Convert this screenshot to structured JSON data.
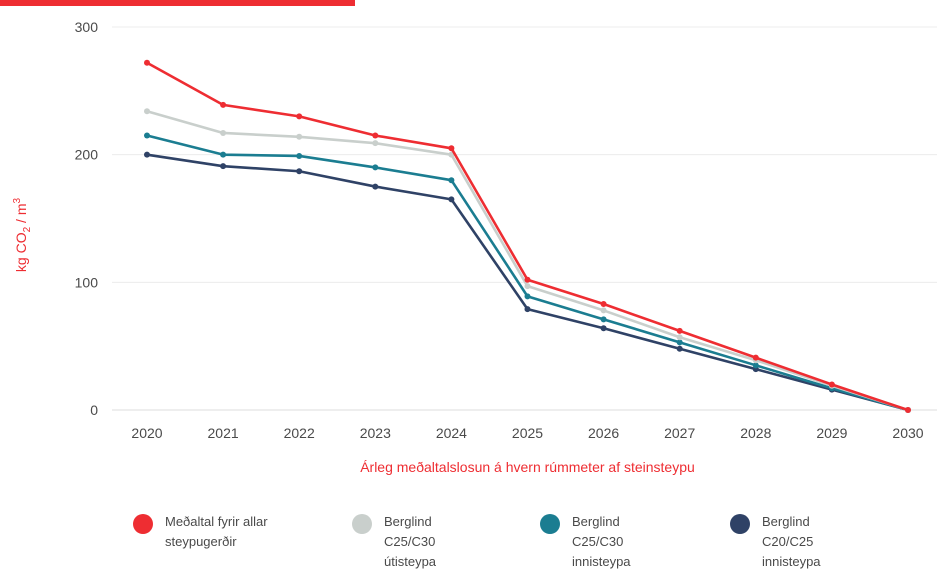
{
  "chart_data": {
    "type": "line",
    "xlabel": "Árleg meðaltalslosun á hvern rúmmeter af steinsteypu",
    "ylabel": "kg CO",
    "ylabel_sub": "2",
    "ylabel_tail": " / m",
    "ylabel_sup": "3",
    "ylim": [
      0,
      300
    ],
    "yticks": [
      0,
      100,
      200,
      300
    ],
    "grid": true,
    "legend_position": "bottom",
    "x": [
      "2020",
      "2021",
      "2022",
      "2023",
      "2024",
      "2025",
      "2026",
      "2027",
      "2028",
      "2029",
      "2030"
    ],
    "series": [
      {
        "name": "Meðaltal fyrir allar steypugerðir",
        "color": "#ee2d32",
        "values": [
          272,
          239,
          230,
          215,
          205,
          102,
          83,
          62,
          41,
          20,
          0
        ]
      },
      {
        "name": "Berglind C25/C30 útisteypa",
        "color": "#c9cfcc",
        "values": [
          234,
          217,
          214,
          209,
          200,
          97,
          78,
          57,
          39,
          19,
          0
        ]
      },
      {
        "name": "Berglind C25/C30 innisteypa",
        "color": "#1b7d91",
        "values": [
          215,
          200,
          199,
          190,
          180,
          89,
          71,
          53,
          35,
          17,
          0
        ]
      },
      {
        "name": "Berglind C20/C25 innisteypa",
        "color": "#2f4266",
        "values": [
          200,
          191,
          187,
          175,
          165,
          79,
          64,
          48,
          32,
          16,
          0
        ]
      }
    ]
  },
  "colors": {
    "accent": "#ee2d32",
    "axis_text": "#4a4a4a",
    "grid": "#ececec"
  },
  "legend": [
    {
      "label": "Meðaltal fyrir allar\nsteypugerðir",
      "color": "#ee2d32"
    },
    {
      "label": "Berglind\nC25/C30\nútisteypa",
      "color": "#c9cfcc"
    },
    {
      "label": "Berglind\nC25/C30\ninnisteypa",
      "color": "#1b7d91"
    },
    {
      "label": "Berglind\nC20/C25\ninnisteypa",
      "color": "#2f4266"
    }
  ]
}
